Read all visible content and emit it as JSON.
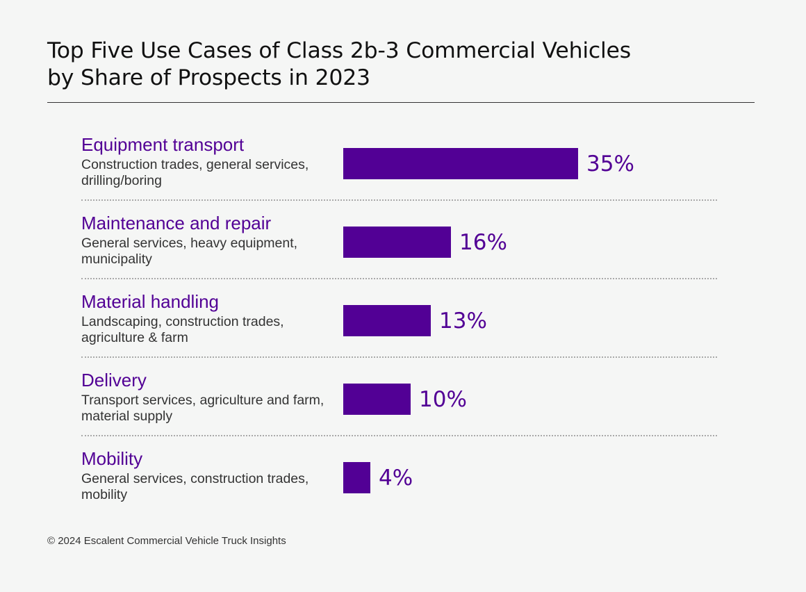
{
  "chart_data": {
    "type": "bar",
    "orientation": "horizontal",
    "title": "Top Five Use Cases of Class 2b-3 Commercial Vehicles by Share of Prospects in 2023",
    "title_lines": [
      "Top Five Use Cases of Class 2b-3 Commercial Vehicles",
      "by Share of Prospects in 2023"
    ],
    "categories": [
      "Equipment transport",
      "Maintenance and repair",
      "Material handling",
      "Delivery",
      "Mobility"
    ],
    "subtitles": [
      "Construction trades, general services, drilling/boring",
      "General services, heavy equipment, municipality",
      "Landscaping, construction trades, agriculture & farm",
      "Transport services, agriculture and farm, material supply",
      "General services, construction trades, mobility"
    ],
    "values": [
      35,
      16,
      13,
      10,
      4
    ],
    "value_labels": [
      "35%",
      "16%",
      "13%",
      "10%",
      "4%"
    ],
    "unit": "%",
    "xlim": [
      0,
      35
    ],
    "grid": false,
    "legend": "none",
    "bar_color": "#520095"
  },
  "footer": {
    "source": "© 2024 Escalent Commercial Vehicle Truck Insights"
  },
  "colors": {
    "accent": "#520095",
    "background": "#f5f6f5"
  }
}
